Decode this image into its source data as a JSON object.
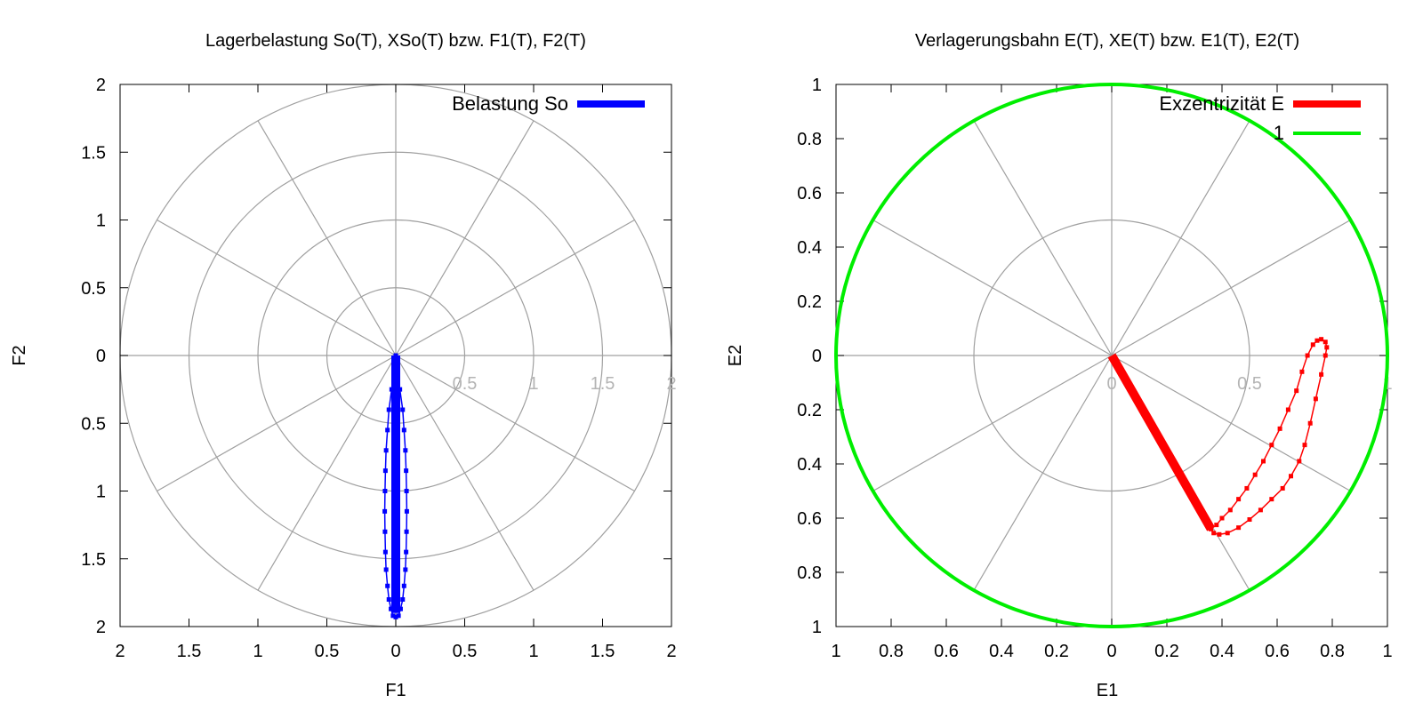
{
  "chart_data": [
    {
      "type": "scatter",
      "title": "Lagerbelastung So(T), XSo(T) bzw. F1(T), F2(T)",
      "xlabel": "F1",
      "ylabel": "F2",
      "xlim": [
        -2,
        2
      ],
      "ylim": [
        -2,
        2
      ],
      "x_tick_labels": [
        "2",
        "1.5",
        "1",
        "0.5",
        "0",
        "0.5",
        "1",
        "1.5",
        "2"
      ],
      "y_tick_labels": [
        "2",
        "1.5",
        "1",
        "0.5",
        "0",
        "0.5",
        "1",
        "1.5",
        "2"
      ],
      "radial_labels": [
        "0.5",
        "1",
        "1.5",
        "2"
      ],
      "polar_grid": {
        "rings": [
          0.5,
          1,
          1.5,
          2
        ],
        "spoke_step_deg": 30
      },
      "legend_position": "top-right",
      "series": [
        {
          "name": "Belastung So",
          "color": "#0000ff",
          "style": "thick-line",
          "x": [
            0,
            0
          ],
          "y": [
            0,
            -1.9
          ]
        },
        {
          "color": "#0000ff",
          "style": "line-points",
          "x": [
            0,
            0.01,
            0.03,
            0.05,
            0.06,
            0.07,
            0.075,
            0.078,
            0.08,
            0.078,
            0.075,
            0.07,
            0.06,
            0.05,
            0.035,
            0.02,
            0.0,
            -0.02,
            -0.035,
            -0.05,
            -0.06,
            -0.07,
            -0.075,
            -0.078,
            -0.08,
            -0.078,
            -0.075,
            -0.07,
            -0.06,
            -0.05,
            -0.03,
            -0.01,
            0
          ],
          "y": [
            0,
            -0.1,
            -0.25,
            -0.4,
            -0.55,
            -0.7,
            -0.85,
            -1.0,
            -1.15,
            -1.3,
            -1.45,
            -1.58,
            -1.7,
            -1.8,
            -1.87,
            -1.92,
            -1.93,
            -1.92,
            -1.87,
            -1.8,
            -1.7,
            -1.58,
            -1.45,
            -1.3,
            -1.15,
            -1.0,
            -0.85,
            -0.7,
            -0.55,
            -0.4,
            -0.25,
            -0.1,
            0
          ]
        }
      ]
    },
    {
      "type": "scatter",
      "title": "Verlagerungsbahn E(T), XE(T) bzw. E1(T), E2(T)",
      "xlabel": "E1",
      "ylabel": "E2",
      "xlim": [
        -1,
        1
      ],
      "ylim": [
        -1,
        1
      ],
      "x_tick_labels": [
        "1",
        "0.8",
        "0.6",
        "0.4",
        "0.2",
        "0",
        "0.2",
        "0.4",
        "0.6",
        "0.8",
        "1"
      ],
      "y_tick_labels": [
        "1",
        "0.8",
        "0.6",
        "0.4",
        "0.2",
        "0",
        "0.2",
        "0.4",
        "0.6",
        "0.8",
        "1"
      ],
      "radial_labels": [
        "0",
        "0.5",
        "1"
      ],
      "polar_grid": {
        "rings": [
          0.5,
          1
        ],
        "spoke_step_deg": 30
      },
      "legend_position": "top-right",
      "series": [
        {
          "name": "Exzentrizität E",
          "color": "#ff0000",
          "style": "thick-line",
          "x": [
            0,
            0.36
          ],
          "y": [
            0,
            -0.64
          ]
        },
        {
          "name": "1",
          "color": "#00ee00",
          "style": "unit-circle",
          "radius": 1
        },
        {
          "color": "#ff0000",
          "style": "line-points",
          "x": [
            0.36,
            0.37,
            0.39,
            0.42,
            0.46,
            0.5,
            0.54,
            0.58,
            0.62,
            0.65,
            0.68,
            0.7,
            0.72,
            0.74,
            0.76,
            0.775,
            0.78,
            0.775,
            0.76,
            0.745,
            0.73,
            0.71,
            0.69,
            0.67,
            0.64,
            0.61,
            0.58,
            0.55,
            0.52,
            0.49,
            0.46,
            0.43,
            0.4,
            0.38,
            0.36
          ],
          "y": [
            -0.64,
            -0.655,
            -0.66,
            -0.655,
            -0.635,
            -0.605,
            -0.57,
            -0.53,
            -0.49,
            -0.445,
            -0.39,
            -0.33,
            -0.25,
            -0.16,
            -0.07,
            0.0,
            0.03,
            0.05,
            0.06,
            0.055,
            0.04,
            0.0,
            -0.06,
            -0.13,
            -0.2,
            -0.27,
            -0.33,
            -0.39,
            -0.44,
            -0.49,
            -0.53,
            -0.57,
            -0.6,
            -0.625,
            -0.64
          ]
        }
      ]
    }
  ]
}
